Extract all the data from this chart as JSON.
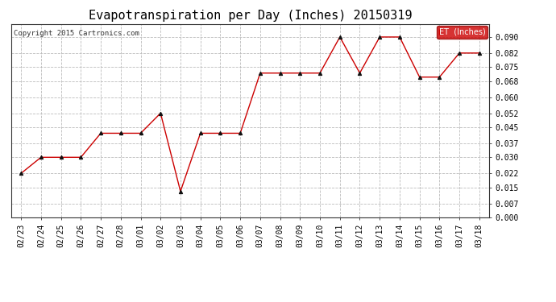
{
  "title": "Evapotranspiration per Day (Inches) 20150319",
  "copyright_text": "Copyright 2015 Cartronics.com",
  "legend_label": "ET  (Inches)",
  "dates": [
    "02/23",
    "02/24",
    "02/25",
    "02/26",
    "02/27",
    "02/28",
    "03/01",
    "03/02",
    "03/03",
    "03/04",
    "03/05",
    "03/06",
    "03/07",
    "03/08",
    "03/09",
    "03/10",
    "03/11",
    "03/12",
    "03/13",
    "03/14",
    "03/15",
    "03/16",
    "03/17",
    "03/18"
  ],
  "values": [
    0.022,
    0.03,
    0.03,
    0.03,
    0.042,
    0.042,
    0.042,
    0.052,
    0.013,
    0.042,
    0.042,
    0.042,
    0.072,
    0.072,
    0.072,
    0.072,
    0.09,
    0.072,
    0.09,
    0.09,
    0.07,
    0.07,
    0.082,
    0.082
  ],
  "line_color": "#cc0000",
  "marker_color": "#111111",
  "background_color": "#ffffff",
  "grid_color": "#bbbbbb",
  "ylim": [
    0.0,
    0.0964
  ],
  "yticks": [
    0.0,
    0.007,
    0.015,
    0.022,
    0.03,
    0.037,
    0.045,
    0.052,
    0.06,
    0.068,
    0.075,
    0.082,
    0.09
  ],
  "title_fontsize": 11,
  "tick_fontsize": 7,
  "legend_bg": "#cc0000",
  "legend_text_color": "#ffffff"
}
